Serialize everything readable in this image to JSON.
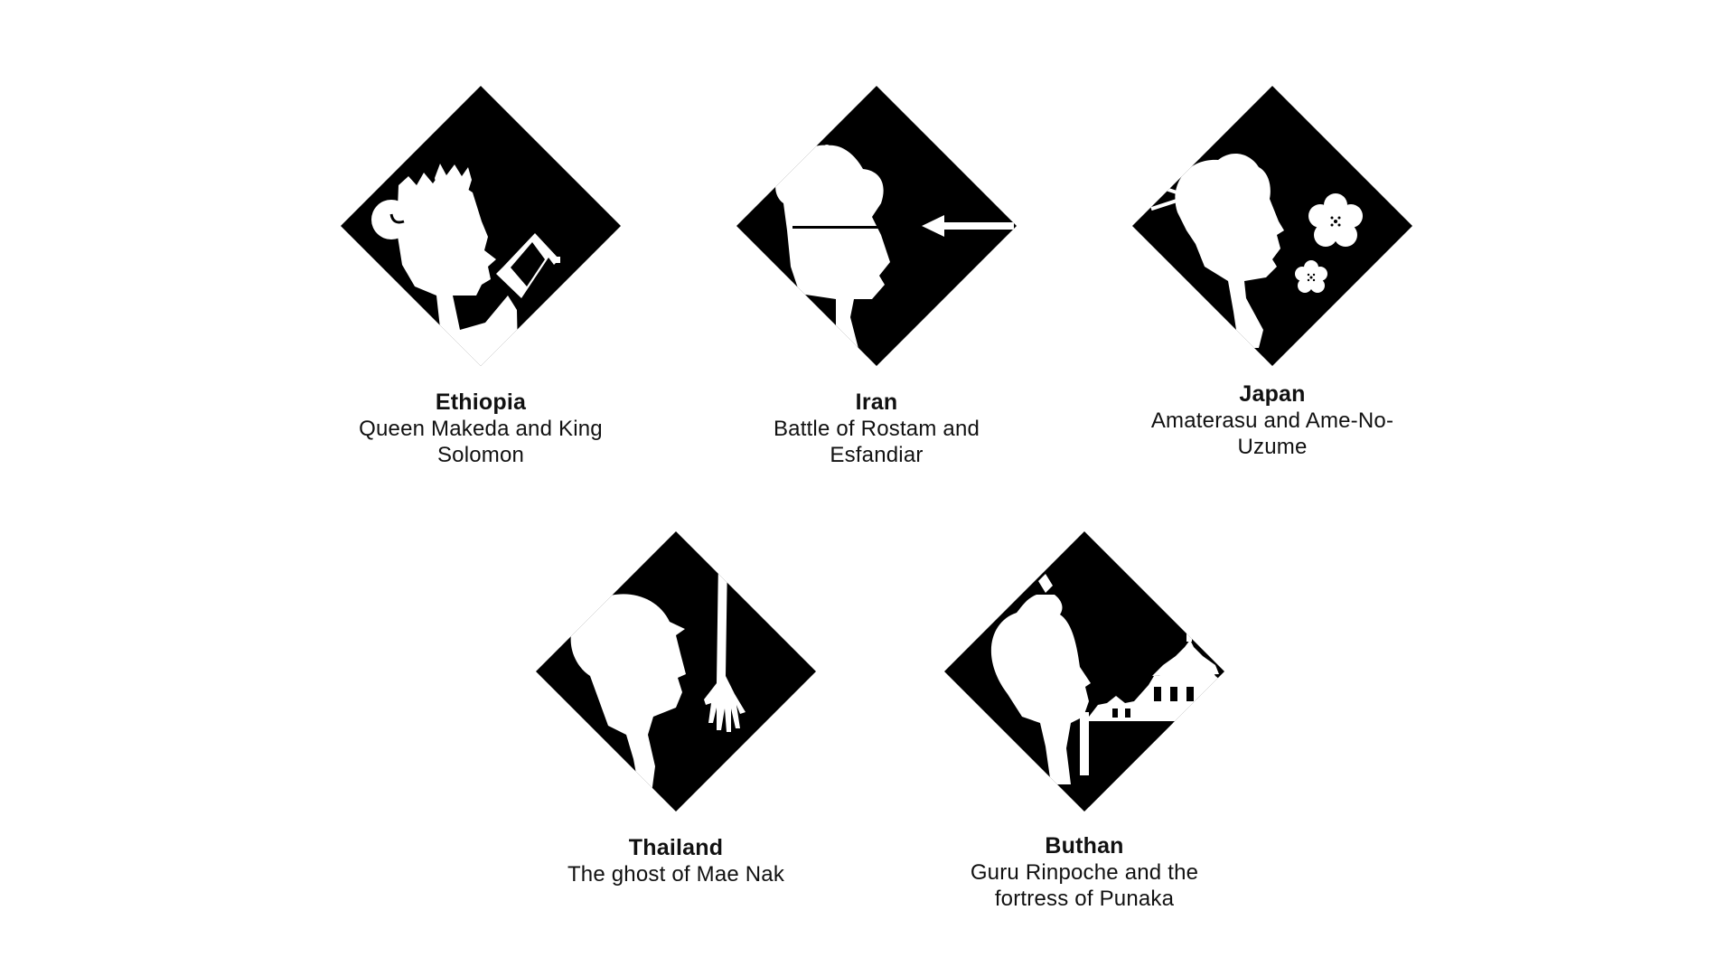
{
  "colors": {
    "background": "#ffffff",
    "emblem": "#000000",
    "silhouette": "#ffffff",
    "text": "#111111"
  },
  "cards": [
    {
      "country": "Ethiopia",
      "story": "Queen Makeda and King Solomon",
      "icon": "crowned-queen-drinking-silhouette-icon"
    },
    {
      "country": "Iran",
      "story": "Battle of Rostam and Esfandiar",
      "icon": "warrior-helmet-arrow-silhouette-icon"
    },
    {
      "country": "Japan",
      "story": "Amaterasu and Ame-No-Uzume",
      "icon": "geisha-plum-blossom-silhouette-icon"
    },
    {
      "country": "Thailand",
      "story": "The ghost of Mae Nak",
      "icon": "monk-ghost-hand-silhouette-icon"
    },
    {
      "country": "Buthan",
      "story": "Guru Rinpoche and the fortress of Punaka",
      "icon": "guru-pagoda-silhouette-icon"
    }
  ]
}
